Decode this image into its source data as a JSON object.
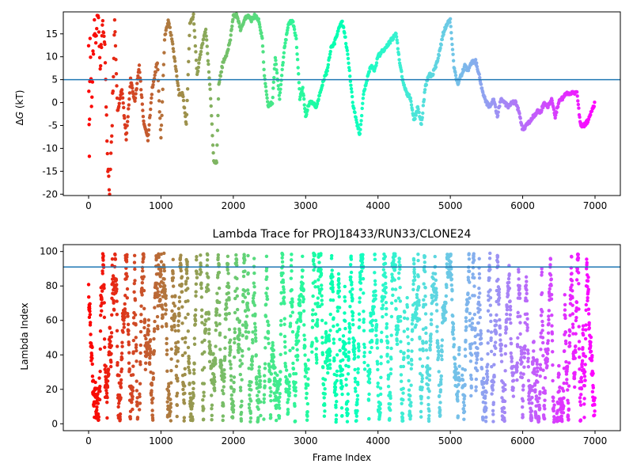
{
  "chart_data": [
    {
      "type": "scatter",
      "title": "",
      "xlabel": "",
      "ylabel_prefix": "Δ",
      "ylabel_var": "G",
      "ylabel_suffix": " (kT)",
      "xlim": [
        -350,
        7350
      ],
      "ylim": [
        -20.3,
        19.8
      ],
      "xticks": [
        0,
        1000,
        2000,
        3000,
        4000,
        5000,
        6000,
        7000
      ],
      "yticks": [
        -20,
        -15,
        -10,
        -5,
        0,
        5,
        10,
        15
      ],
      "hline": 5,
      "hline_color": "#1f77b4",
      "colormap": "rainbow",
      "anchors": [
        [
          0,
          12
        ],
        [
          10,
          -12
        ],
        [
          20,
          14
        ],
        [
          40,
          0
        ],
        [
          60,
          9
        ],
        [
          80,
          18
        ],
        [
          100,
          14
        ],
        [
          130,
          19
        ],
        [
          160,
          8
        ],
        [
          190,
          17
        ],
        [
          230,
          10
        ],
        [
          260,
          -12
        ],
        [
          290,
          -19
        ],
        [
          320,
          -7
        ],
        [
          360,
          18
        ],
        [
          400,
          -2
        ],
        [
          460,
          3
        ],
        [
          520,
          -8
        ],
        [
          580,
          5
        ],
        [
          640,
          0
        ],
        [
          700,
          8
        ],
        [
          760,
          -4
        ],
        [
          820,
          -8
        ],
        [
          880,
          3
        ],
        [
          950,
          9
        ],
        [
          1000,
          -8
        ],
        [
          1050,
          14
        ],
        [
          1100,
          18
        ],
        [
          1150,
          14
        ],
        [
          1200,
          8
        ],
        [
          1250,
          2
        ],
        [
          1300,
          2
        ],
        [
          1350,
          -5
        ],
        [
          1400,
          17
        ],
        [
          1450,
          19
        ],
        [
          1500,
          6
        ],
        [
          1560,
          12
        ],
        [
          1620,
          16
        ],
        [
          1680,
          3
        ],
        [
          1730,
          -13
        ],
        [
          1770,
          -13
        ],
        [
          1800,
          4
        ],
        [
          1860,
          9
        ],
        [
          1900,
          10
        ],
        [
          1960,
          14
        ],
        [
          2000,
          19
        ],
        [
          2050,
          19
        ],
        [
          2100,
          16
        ],
        [
          2150,
          18
        ],
        [
          2200,
          19
        ],
        [
          2250,
          18
        ],
        [
          2300,
          19
        ],
        [
          2350,
          18
        ],
        [
          2400,
          14
        ],
        [
          2430,
          6
        ],
        [
          2480,
          -1
        ],
        [
          2540,
          0
        ],
        [
          2580,
          10
        ],
        [
          2640,
          1
        ],
        [
          2700,
          11
        ],
        [
          2760,
          17
        ],
        [
          2820,
          18
        ],
        [
          2870,
          14
        ],
        [
          2920,
          1
        ],
        [
          2960,
          3
        ],
        [
          3000,
          -3
        ],
        [
          3050,
          0
        ],
        [
          3100,
          0
        ],
        [
          3150,
          -1
        ],
        [
          3250,
          5
        ],
        [
          3300,
          7
        ],
        [
          3350,
          12
        ],
        [
          3400,
          13
        ],
        [
          3450,
          16
        ],
        [
          3500,
          18
        ],
        [
          3550,
          14
        ],
        [
          3600,
          8
        ],
        [
          3650,
          0
        ],
        [
          3700,
          -4
        ],
        [
          3750,
          -7
        ],
        [
          3800,
          2
        ],
        [
          3850,
          5
        ],
        [
          3900,
          8
        ],
        [
          3950,
          7
        ],
        [
          4000,
          10
        ],
        [
          4050,
          11
        ],
        [
          4100,
          12
        ],
        [
          4150,
          13
        ],
        [
          4200,
          14
        ],
        [
          4250,
          15
        ],
        [
          4300,
          9
        ],
        [
          4350,
          4
        ],
        [
          4400,
          2
        ],
        [
          4450,
          1
        ],
        [
          4500,
          -4
        ],
        [
          4550,
          -1
        ],
        [
          4600,
          -5
        ],
        [
          4650,
          3
        ],
        [
          4700,
          6
        ],
        [
          4750,
          6
        ],
        [
          4800,
          8
        ],
        [
          4850,
          11
        ],
        [
          4900,
          15
        ],
        [
          4950,
          17
        ],
        [
          5000,
          18
        ],
        [
          5050,
          8
        ],
        [
          5100,
          4
        ],
        [
          5150,
          6
        ],
        [
          5200,
          8
        ],
        [
          5250,
          7
        ],
        [
          5300,
          9
        ],
        [
          5350,
          9
        ],
        [
          5400,
          6
        ],
        [
          5450,
          2
        ],
        [
          5500,
          0
        ],
        [
          5550,
          -1
        ],
        [
          5600,
          1
        ],
        [
          5650,
          -3
        ],
        [
          5700,
          1
        ],
        [
          5750,
          0
        ],
        [
          5800,
          -1
        ],
        [
          5850,
          0
        ],
        [
          5900,
          0
        ],
        [
          5950,
          -2
        ],
        [
          6000,
          -6
        ],
        [
          6050,
          -5
        ],
        [
          6100,
          -4
        ],
        [
          6150,
          -3
        ],
        [
          6200,
          -2
        ],
        [
          6250,
          -2
        ],
        [
          6300,
          0
        ],
        [
          6350,
          -1
        ],
        [
          6400,
          1
        ],
        [
          6450,
          -3
        ],
        [
          6500,
          0
        ],
        [
          6550,
          1
        ],
        [
          6600,
          2
        ],
        [
          6650,
          2
        ],
        [
          6700,
          2
        ],
        [
          6750,
          2
        ],
        [
          6800,
          -5
        ],
        [
          6850,
          -5
        ],
        [
          6900,
          -4
        ],
        [
          6950,
          -2
        ],
        [
          7000,
          0
        ]
      ]
    },
    {
      "type": "scatter",
      "title": "Lambda Trace for PROJ18433/RUN33/CLONE24",
      "xlabel": "Frame Index",
      "ylabel": "Lambda Index",
      "xlim": [
        -350,
        7350
      ],
      "ylim": [
        -4,
        104
      ],
      "xticks": [
        0,
        1000,
        2000,
        3000,
        4000,
        5000,
        6000,
        7000
      ],
      "yticks": [
        0,
        20,
        40,
        60,
        80,
        100
      ],
      "hline": 91,
      "hline_color": "#1f77b4",
      "colormap": "rainbow",
      "n_points": 7000,
      "range": [
        1,
        99
      ],
      "gaps": [
        [
          680,
          700
        ],
        [
          1500,
          1540
        ],
        [
          2380,
          2420
        ],
        [
          3040,
          3080
        ],
        [
          3820,
          3860
        ],
        [
          4370,
          4400
        ],
        [
          5130,
          5160
        ],
        [
          5880,
          5910
        ],
        [
          6440,
          6470
        ]
      ]
    }
  ]
}
